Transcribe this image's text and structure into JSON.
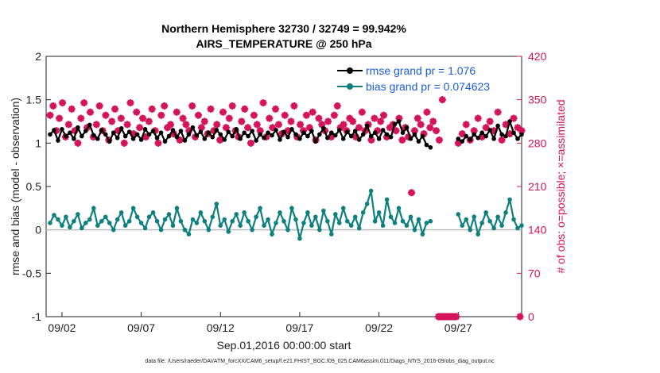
{
  "chart_data": {
    "type": "line",
    "title_line1": "Northern Hemisphere 32730 / 32749 = 99.942%",
    "title_line2": "AIRS_TEMPERATURE @ 250 hPa",
    "xlabel": "Sep.01,2016 00:00:00 start",
    "ylabel": "rmse and bias (model - observation)",
    "ylabel_right": "# of obs: o=possible; ×=assimilated",
    "ylim": [
      -1,
      2
    ],
    "ylim_right": [
      0,
      420
    ],
    "xlim": [
      0,
      30
    ],
    "yticks": [
      "2",
      "1.5",
      "1",
      "0.5",
      "0",
      "-0.5",
      "-1"
    ],
    "yticks_right": [
      "420",
      "350",
      "280",
      "210",
      "140",
      "70",
      "0"
    ],
    "xticks": [
      "09/02",
      "09/07",
      "09/12",
      "09/17",
      "09/22",
      "09/27"
    ],
    "footnote": "data file: /Users/raeder/DAI/ATM_forcXX/CAM6_setup/f.e21.FHIST_BGC.f09_025.CAM6assim.011/Diags_NTrS_2016-09/obs_diag_output.nc",
    "series": [
      {
        "name": "rmse grand pr = 1.076",
        "color": "#000000",
        "x_start": 0.25,
        "x_step": 0.25,
        "segments": [
          [
            1.1,
            1.15,
            1.03,
            1.16,
            1.08,
            1.12,
            1.05,
            1.18,
            1.08,
            1.14,
            1.21,
            1.09,
            1.05,
            1.15,
            1.1,
            1.02,
            1.12,
            1.06,
            1.17,
            1.08,
            1.13,
            1.05,
            1.1,
            1.04,
            1.16,
            1.1,
            1.14,
            1.06,
            1.12,
            1.02,
            1.08,
            1.15,
            1.07,
            1.14,
            1.03,
            1.1,
            1.18,
            1.09,
            1.13,
            1.05,
            1.12,
            1.07,
            1.15,
            1.1,
            1.04,
            1.13,
            1.08,
            1.16,
            1.05,
            1.12,
            1.08,
            1.14,
            1.03,
            1.1,
            1.06,
            1.12,
            1.09,
            1.15,
            1.04,
            1.13,
            1.07,
            1.16,
            1.1,
            1.05,
            1.12,
            1.08,
            1.14,
            1.02,
            1.1,
            1.17,
            1.06,
            1.12,
            1.09,
            1.15,
            1.05,
            1.13,
            1.08,
            1.14,
            1.04,
            1.1,
            1.2,
            1.08,
            1.12,
            1.05,
            1.15,
            1.1,
            1.07,
            1.22,
            1.25,
            1.12,
            1.18,
            1.05,
            1.1,
            1.02,
            1.08,
            0.98,
            0.95
          ],
          [
            1.05,
            1.02,
            1.08,
            1.04,
            1.1,
            1.06,
            1.12,
            1.08,
            1.15,
            1.05,
            1.2,
            1.1,
            1.08,
            1.25,
            1.12,
            1.05,
            1.1
          ]
        ],
        "segment_starts": [
          0.25,
          26.0
        ]
      },
      {
        "name": "bias grand pr = 0.074623",
        "color": "#0e8080",
        "x_start": 0.25,
        "x_step": 0.25,
        "segments": [
          [
            0.08,
            0.17,
            0.12,
            0.05,
            0.15,
            0.03,
            0.1,
            0.18,
            0.02,
            0.08,
            0.12,
            0.25,
            0.05,
            0.1,
            0.15,
            0.08,
            0.0,
            0.12,
            0.2,
            0.05,
            0.1,
            0.25,
            0.15,
            0.08,
            0.02,
            0.15,
            0.2,
            0.1,
            0.0,
            0.12,
            0.18,
            0.05,
            0.25,
            0.1,
            0.0,
            -0.05,
            0.12,
            0.08,
            0.2,
            0.1,
            0.0,
            0.15,
            0.3,
            0.05,
            0.12,
            -0.02,
            0.1,
            0.18,
            0.05,
            0.2,
            0.1,
            0.0,
            0.15,
            0.25,
            0.05,
            0.12,
            -0.05,
            0.08,
            0.2,
            0.1,
            0.0,
            0.25,
            0.12,
            -0.1,
            0.08,
            0.2,
            0.05,
            0.15,
            0.0,
            0.22,
            0.1,
            -0.05,
            0.18,
            0.08,
            0.25,
            0.1,
            0.05,
            0.15,
            0.02,
            0.2,
            0.3,
            0.45,
            0.1,
            0.2,
            0.05,
            0.35,
            0.15,
            0.08,
            0.25,
            0.1,
            0.05,
            0.15,
            0.0,
            0.12,
            -0.05,
            0.08,
            0.1
          ],
          [
            0.18,
            0.05,
            0.12,
            0.0,
            0.15,
            -0.05,
            0.08,
            0.2,
            0.1,
            0.02,
            0.15,
            0.05,
            0.2,
            0.35,
            0.12,
            0.02,
            0.05
          ]
        ],
        "segment_starts": [
          0.25,
          26.0
        ]
      }
    ],
    "obs_possible_color": "#d4145a",
    "obs_assimilated": [
      325,
      340,
      300,
      320,
      345,
      290,
      310,
      335,
      300,
      280,
      320,
      345,
      305,
      330,
      290,
      310,
      340,
      300,
      325,
      285,
      315,
      335,
      300,
      320,
      280,
      310,
      345,
      295,
      330,
      305,
      320,
      290,
      315,
      335,
      300,
      280,
      325,
      340,
      305,
      310,
      295,
      330,
      285,
      320,
      310,
      300,
      340,
      290,
      325,
      305,
      315,
      295,
      335,
      300,
      310,
      285,
      330,
      305,
      320,
      340,
      300,
      290,
      315,
      335,
      305,
      280,
      325,
      310,
      300,
      345,
      290,
      320,
      305,
      335,
      310,
      295,
      325,
      300,
      315,
      340,
      290,
      310,
      300,
      325,
      305,
      330,
      285,
      320,
      310,
      300,
      315,
      290,
      325,
      340,
      305,
      310,
      300,
      320,
      315,
      290,
      305,
      330,
      300,
      310,
      285,
      320,
      300,
      315,
      325,
      290,
      305,
      310,
      300,
      320,
      285,
      305,
      290,
      200,
      300,
      320,
      310,
      295,
      330,
      305,
      315,
      300,
      285,
      350
    ],
    "obs_assimilated_late": [
      280,
      295,
      310,
      285,
      300,
      320,
      290,
      305,
      315,
      300,
      330,
      285,
      310,
      295,
      320,
      305,
      300
    ]
  }
}
